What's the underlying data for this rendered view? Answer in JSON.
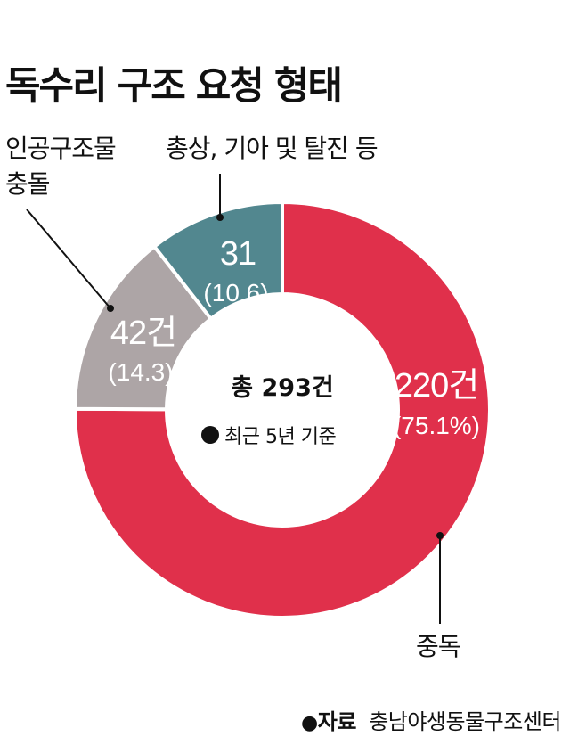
{
  "title": "독수리 구조 요청 형태",
  "chart_data": {
    "type": "pie",
    "title": "독수리 구조 요청 형태",
    "unit": "건",
    "total": 293,
    "total_label": "총 293건",
    "basis_note": "최근 5년 기준",
    "slices": [
      {
        "name": "중독",
        "value": 220,
        "value_label": "220건",
        "percent": 75.1,
        "percent_label": "(75.1%)",
        "color": "#e0304b"
      },
      {
        "name": "인공구조물 충돌",
        "value": 42,
        "value_label": "42건",
        "percent": 14.3,
        "percent_label": "(14.3)",
        "color": "#ada5a6"
      },
      {
        "name": "총상, 기아 및 탈진 등",
        "value": 31,
        "value_label": "31",
        "percent": 10.6,
        "percent_label": "(10.6)",
        "color": "#52878f"
      }
    ],
    "category_labels": {
      "poison": "중독",
      "collision_line1": "인공구조물",
      "collision_line2": "충돌",
      "other": "총상, 기아 및 탈진 등"
    }
  },
  "colors": {
    "poison": "#e0304b",
    "collision": "#ada5a6",
    "other": "#52878f",
    "separator": "#ffffff"
  },
  "source": {
    "dot": "●",
    "key": "자료",
    "text": "충남야생동물구조센터"
  }
}
